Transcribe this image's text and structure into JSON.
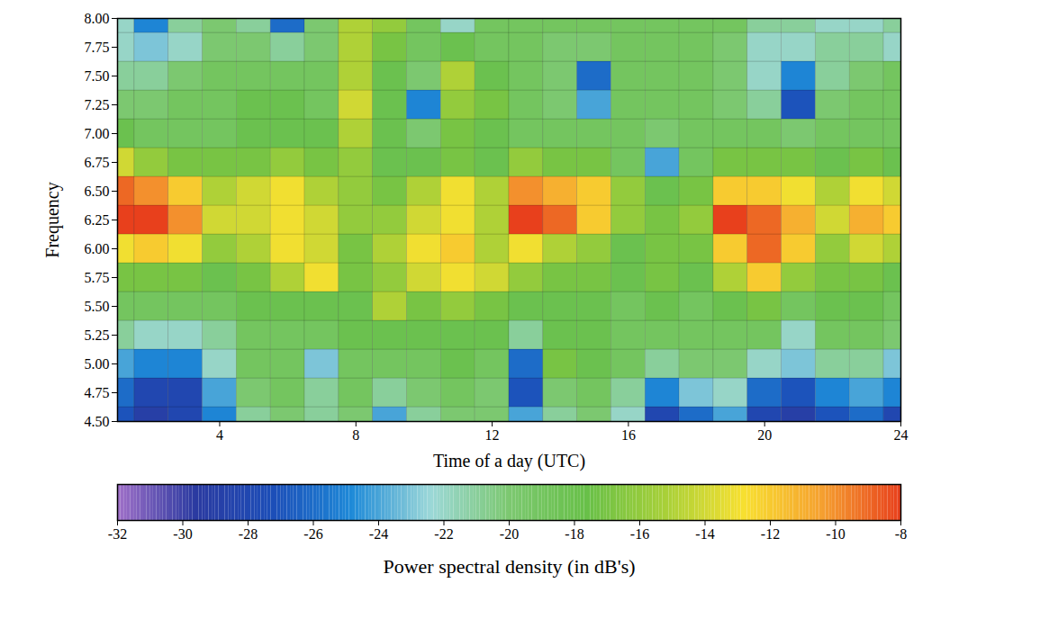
{
  "chart_data": {
    "type": "heatmap",
    "xlabel": "Time of a day (UTC)",
    "ylabel": "Frequency",
    "xlim": [
      1,
      24
    ],
    "xticks": [
      4,
      8,
      12,
      16,
      20,
      24
    ],
    "ylim": [
      4.5,
      8.0
    ],
    "yticks": [
      {
        "value": 4.5,
        "label": "4.50"
      },
      {
        "value": 4.75,
        "label": "4.75"
      },
      {
        "value": 5.0,
        "label": "5.00"
      },
      {
        "value": 5.25,
        "label": "5.25"
      },
      {
        "value": 5.5,
        "label": "5.50"
      },
      {
        "value": 5.75,
        "label": "5.75"
      },
      {
        "value": 6.0,
        "label": "6.00"
      },
      {
        "value": 6.25,
        "label": "6.25"
      },
      {
        "value": 6.5,
        "label": "6.50"
      },
      {
        "value": 6.75,
        "label": "6.75"
      },
      {
        "value": 7.0,
        "label": "7.00"
      },
      {
        "value": 7.25,
        "label": "7.25"
      },
      {
        "value": 7.5,
        "label": "7.50"
      },
      {
        "value": 7.75,
        "label": "7.75"
      },
      {
        "value": 8.0,
        "label": "8.00"
      }
    ],
    "x": [
      1,
      2,
      3,
      4,
      5,
      6,
      7,
      8,
      9,
      10,
      11,
      12,
      13,
      14,
      15,
      16,
      17,
      18,
      19,
      20,
      21,
      22,
      23,
      24
    ],
    "y": [
      4.5,
      4.75,
      5.0,
      5.25,
      5.5,
      5.75,
      6.0,
      6.25,
      6.5,
      6.75,
      7.0,
      7.25,
      7.5,
      7.75,
      8.0
    ],
    "cells": [
      [
        -27,
        -29,
        -28,
        -25,
        -21,
        -20,
        -21,
        -20,
        -24,
        -21,
        -20,
        -20,
        -24,
        -21,
        -20,
        -22,
        -28,
        -26,
        -24,
        -28,
        -29,
        -27,
        -26,
        -28
      ],
      [
        -26,
        -28,
        -28,
        -24,
        -20,
        -19,
        -21,
        -19,
        -21,
        -20,
        -19,
        -20,
        -27,
        -20,
        -19,
        -21,
        -25,
        -23,
        -22,
        -26,
        -27,
        -25,
        -24,
        -25
      ],
      [
        -24,
        -25,
        -25,
        -22,
        -19,
        -19,
        -23,
        -19,
        -19,
        -19,
        -18,
        -19,
        -26,
        -17,
        -18,
        -19,
        -21,
        -20,
        -20,
        -22,
        -23,
        -21,
        -21,
        -23
      ],
      [
        -21,
        -22,
        -22,
        -21,
        -19,
        -19,
        -19,
        -18,
        -18,
        -18,
        -18,
        -18,
        -21,
        -18,
        -18,
        -19,
        -19,
        -19,
        -19,
        -19,
        -22,
        -19,
        -19,
        -20
      ],
      [
        -19,
        -19,
        -19,
        -19,
        -18,
        -18,
        -18,
        -18,
        -15,
        -17,
        -16,
        -17,
        -18,
        -18,
        -18,
        -19,
        -18,
        -19,
        -18,
        -17,
        -19,
        -18,
        -18,
        -19
      ],
      [
        -17,
        -17,
        -17,
        -18,
        -17,
        -15,
        -13,
        -17,
        -16,
        -14,
        -13,
        -14,
        -16,
        -17,
        -17,
        -18,
        -17,
        -18,
        -15,
        -12,
        -16,
        -17,
        -17,
        -18
      ],
      [
        -13,
        -12,
        -13,
        -16,
        -15,
        -13,
        -14,
        -17,
        -15,
        -13,
        -12,
        -15,
        -13,
        -15,
        -16,
        -18,
        -17,
        -17,
        -12,
        -9,
        -12,
        -16,
        -14,
        -15
      ],
      [
        -8,
        -8,
        -10,
        -14,
        -14,
        -13,
        -14,
        -16,
        -16,
        -14,
        -13,
        -15,
        -8,
        -9,
        -12,
        -16,
        -17,
        -16,
        -8,
        -9,
        -11,
        -14,
        -11,
        -12
      ],
      [
        -9,
        -10,
        -12,
        -15,
        -14,
        -13,
        -15,
        -16,
        -17,
        -15,
        -13,
        -15,
        -10,
        -11,
        -12,
        -16,
        -18,
        -17,
        -12,
        -12,
        -13,
        -15,
        -13,
        -14
      ],
      [
        -14,
        -16,
        -17,
        -17,
        -17,
        -16,
        -17,
        -16,
        -18,
        -18,
        -17,
        -18,
        -16,
        -17,
        -17,
        -19,
        -24,
        -19,
        -17,
        -17,
        -17,
        -18,
        -17,
        -18
      ],
      [
        -18,
        -19,
        -19,
        -19,
        -18,
        -18,
        -18,
        -15,
        -18,
        -20,
        -17,
        -18,
        -19,
        -19,
        -19,
        -19,
        -20,
        -19,
        -19,
        -19,
        -20,
        -19,
        -19,
        -19
      ],
      [
        -20,
        -20,
        -19,
        -19,
        -18,
        -18,
        -19,
        -14,
        -18,
        -25,
        -16,
        -17,
        -19,
        -20,
        -24,
        -19,
        -19,
        -19,
        -20,
        -21,
        -27,
        -20,
        -19,
        -19
      ],
      [
        -21,
        -21,
        -20,
        -19,
        -19,
        -19,
        -19,
        -15,
        -18,
        -20,
        -15,
        -18,
        -19,
        -20,
        -26,
        -19,
        -19,
        -19,
        -20,
        -22,
        -25,
        -21,
        -20,
        -19
      ],
      [
        -22,
        -23,
        -22,
        -20,
        -20,
        -21,
        -20,
        -15,
        -17,
        -19,
        -18,
        -19,
        -19,
        -20,
        -20,
        -19,
        -19,
        -19,
        -20,
        -22,
        -22,
        -21,
        -21,
        -22
      ],
      [
        -22,
        -25,
        -21,
        -20,
        -21,
        -26,
        -20,
        -15,
        -16,
        -19,
        -22,
        -19,
        -19,
        -19,
        -19,
        -19,
        -19,
        -19,
        -19,
        -21,
        -21,
        -22,
        -22,
        -21
      ]
    ],
    "colorbar_label": "Power spectral density (in dB's)",
    "colorbar_lim": [
      -32,
      -8
    ],
    "colorbar_ticks": [
      -32,
      -30,
      -28,
      -26,
      -24,
      -22,
      -20,
      -18,
      -16,
      -14,
      -12,
      -10,
      -8
    ]
  }
}
